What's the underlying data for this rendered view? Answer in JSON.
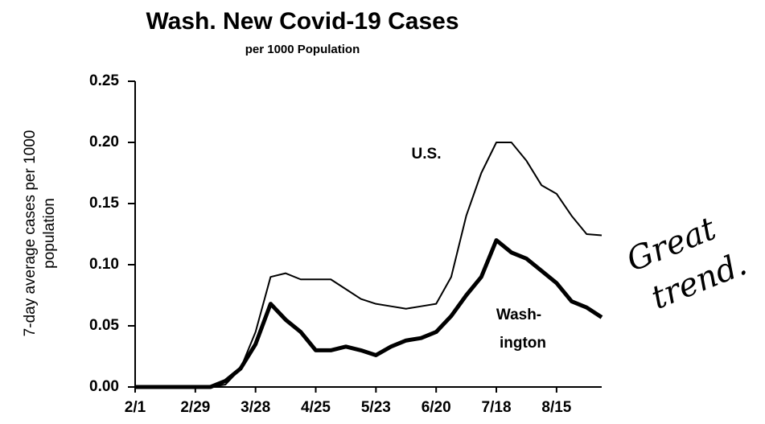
{
  "chart_data": {
    "type": "line",
    "title": "Wash. New Covid-19 Cases",
    "subtitle": "per 1000 Population",
    "y_label": [
      "7-day average cases per 1000",
      "population"
    ],
    "categories": [
      "2/1",
      null,
      null,
      null,
      "2/29",
      null,
      null,
      null,
      "3/28",
      null,
      null,
      null,
      "4/25",
      null,
      null,
      null,
      "5/23",
      null,
      null,
      null,
      "6/20",
      null,
      null,
      null,
      "7/18",
      null,
      null,
      null,
      "8/15",
      null,
      null,
      null
    ],
    "series": [
      {
        "name": "U.S.",
        "color": "#000000",
        "values": [
          0,
          0,
          0,
          0,
          0,
          0,
          0.002,
          0.015,
          0.045,
          0.09,
          0.093,
          0.088,
          0.088,
          0.088,
          0.08,
          0.072,
          0.068,
          0.066,
          0.064,
          0.066,
          0.068,
          0.09,
          0.14,
          0.175,
          0.2,
          0.2,
          0.185,
          0.165,
          0.158,
          0.14,
          0.125,
          0.124
        ]
      },
      {
        "name": "Washington",
        "color": "#000000",
        "values": [
          0,
          0,
          0,
          0,
          0,
          0,
          0.005,
          0.015,
          0.035,
          0.068,
          0.055,
          0.045,
          0.03,
          0.03,
          0.033,
          0.03,
          0.026,
          0.033,
          0.038,
          0.04,
          0.045,
          0.058,
          0.075,
          0.09,
          0.12,
          0.11,
          0.105,
          0.095,
          0.085,
          0.07,
          0.065,
          0.057
        ]
      }
    ],
    "annotations": [
      "U.S.",
      "Wash-",
      "ington"
    ],
    "handwritten": [
      "Great",
      "trend."
    ],
    "ylim": [
      0,
      0.25
    ],
    "yticks": [
      {
        "value": 0,
        "label": "0.00"
      },
      {
        "value": 0.05,
        "label": "0.05"
      },
      {
        "value": 0.1,
        "label": "0.10"
      },
      {
        "value": 0.15,
        "label": "0.15"
      },
      {
        "value": 0.2,
        "label": "0.20"
      },
      {
        "value": 0.25,
        "label": "0.25"
      }
    ],
    "grid": false
  }
}
